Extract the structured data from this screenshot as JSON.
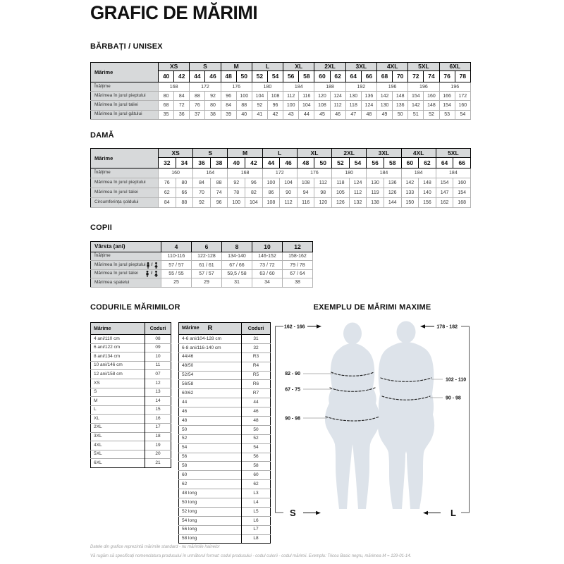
{
  "page": {
    "title": "GRAFIC DE MĂRIMI",
    "footnote1": "Datele din grafice reprezintă mărimile standard - nu mărimile hainelor",
    "footnote2": "Vă rugăm să specificați nomenclatura produsului în următorul format: codul produsului - codul culorii - codul mărimii. Exemplu: Tricou Basic negru, mărimea M = 129-01-14."
  },
  "colors": {
    "header_bg": "#d7d9da",
    "silhouette": "#dde3ea"
  },
  "men": {
    "heading": "BĂRBAȚI / UNISEX",
    "corner_label": "Mărime",
    "sizes": [
      "XS",
      "S",
      "M",
      "L",
      "XL",
      "2XL",
      "3XL",
      "4XL",
      "5XL",
      "6XL"
    ],
    "numbers": [
      "40",
      "42",
      "44",
      "46",
      "48",
      "50",
      "52",
      "54",
      "56",
      "58",
      "60",
      "62",
      "64",
      "66",
      "68",
      "70",
      "72",
      "74",
      "76",
      "78"
    ],
    "rows": [
      {
        "label": "Înălțime",
        "span2": true,
        "values": [
          "168",
          "172",
          "176",
          "180",
          "184",
          "188",
          "192",
          "196",
          "196",
          "196"
        ]
      },
      {
        "label": "Mărimea în jurul pieptului",
        "values": [
          "80",
          "84",
          "88",
          "92",
          "96",
          "100",
          "104",
          "108",
          "112",
          "116",
          "120",
          "124",
          "130",
          "136",
          "142",
          "148",
          "154",
          "160",
          "166",
          "172"
        ]
      },
      {
        "label": "Mărimea în jurul taliei",
        "values": [
          "68",
          "72",
          "76",
          "80",
          "84",
          "88",
          "92",
          "96",
          "100",
          "104",
          "108",
          "112",
          "118",
          "124",
          "130",
          "136",
          "142",
          "148",
          "154",
          "160"
        ]
      },
      {
        "label": "Mărimea în jurul gâtului",
        "values": [
          "35",
          "36",
          "37",
          "38",
          "39",
          "40",
          "41",
          "42",
          "43",
          "44",
          "45",
          "46",
          "47",
          "48",
          "49",
          "50",
          "51",
          "52",
          "53",
          "54"
        ]
      }
    ]
  },
  "women": {
    "heading": "DAMĂ",
    "corner_label": "Mărime",
    "sizes": [
      "XS",
      "S",
      "M",
      "L",
      "XL",
      "2XL",
      "3XL",
      "4XL",
      "5XL"
    ],
    "numbers": [
      "32",
      "34",
      "36",
      "38",
      "40",
      "42",
      "44",
      "46",
      "48",
      "50",
      "52",
      "54",
      "56",
      "58",
      "60",
      "62",
      "64",
      "66"
    ],
    "rows": [
      {
        "label": "Înălțime",
        "span2": true,
        "values": [
          "160",
          "164",
          "168",
          "172",
          "176",
          "180",
          "184",
          "184",
          "184"
        ]
      },
      {
        "label": "Mărimea în jurul pieptului",
        "values": [
          "76",
          "80",
          "84",
          "88",
          "92",
          "96",
          "100",
          "104",
          "108",
          "112",
          "118",
          "124",
          "130",
          "136",
          "142",
          "148",
          "154",
          "160"
        ]
      },
      {
        "label": "Mărimea în jurul taliei",
        "values": [
          "62",
          "66",
          "70",
          "74",
          "78",
          "82",
          "86",
          "90",
          "94",
          "98",
          "105",
          "112",
          "119",
          "126",
          "133",
          "140",
          "147",
          "154"
        ]
      },
      {
        "label": "Circumferința șoldului",
        "values": [
          "84",
          "88",
          "92",
          "96",
          "100",
          "104",
          "108",
          "112",
          "116",
          "120",
          "126",
          "132",
          "138",
          "144",
          "150",
          "156",
          "162",
          "168"
        ]
      }
    ]
  },
  "children": {
    "heading": "COPII",
    "corner_label": "Vârsta (ani)",
    "icon_separator": "/",
    "ages": [
      "4",
      "6",
      "8",
      "10",
      "12"
    ],
    "rows": [
      {
        "label": "Înălțime",
        "values": [
          "110-116",
          "122-128",
          "134-140",
          "146-152",
          "158-162"
        ]
      },
      {
        "label": "Mărimea în jurul pieptului",
        "icons": true,
        "values": [
          "57 / 57",
          "61 / 61",
          "67 / 66",
          "73 / 72",
          "79 / 78"
        ]
      },
      {
        "label": "Mărimea în jurul taliei",
        "icons": true,
        "values": [
          "55 / 55",
          "57 / 57",
          "59,5 / 58",
          "63 / 60",
          "67 / 64"
        ]
      },
      {
        "label": "Mărimea spatelui",
        "values": [
          "25",
          "29",
          "31",
          "34",
          "38"
        ]
      }
    ]
  },
  "codes": {
    "heading": "CODURILE MĂRIMILOR",
    "table1": {
      "col1": "Mărime",
      "col2": "Coduri",
      "rows": [
        [
          "4 ani/110 cm",
          "08"
        ],
        [
          "6 ani/122 cm",
          "09"
        ],
        [
          "8 ani/134 cm",
          "10"
        ],
        [
          "10 ani/146 cm",
          "11"
        ],
        [
          "12 ani/158 cm",
          "07"
        ],
        [
          "XS",
          "12"
        ],
        [
          "S",
          "13"
        ],
        [
          "M",
          "14"
        ],
        [
          "L",
          "15"
        ],
        [
          "XL",
          "16"
        ],
        [
          "2XL",
          "17"
        ],
        [
          "3XL",
          "18"
        ],
        [
          "4XL",
          "19"
        ],
        [
          "5XL",
          "20"
        ],
        [
          "6XL",
          "21"
        ]
      ]
    },
    "table2": {
      "col1": "Mărime",
      "logo": "R",
      "col2": "Coduri",
      "rows": [
        [
          "4-6 ani/104-128 cm",
          "31"
        ],
        [
          "6-8 ani/116-140 cm",
          "32"
        ],
        [
          "44/46",
          "R3"
        ],
        [
          "48/50",
          "R4"
        ],
        [
          "52/54",
          "R5"
        ],
        [
          "56/58",
          "R6"
        ],
        [
          "60/62",
          "R7"
        ],
        [
          "44",
          "44"
        ],
        [
          "46",
          "46"
        ],
        [
          "48",
          "48"
        ],
        [
          "50",
          "50"
        ],
        [
          "52",
          "52"
        ],
        [
          "54",
          "54"
        ],
        [
          "56",
          "56"
        ],
        [
          "58",
          "58"
        ],
        [
          "60",
          "60"
        ],
        [
          "62",
          "62"
        ],
        [
          "48 long",
          "L3"
        ],
        [
          "50 long",
          "L4"
        ],
        [
          "52 long",
          "L5"
        ],
        [
          "54 long",
          "L6"
        ],
        [
          "56 long",
          "L7"
        ],
        [
          "58 long",
          "L8"
        ]
      ]
    }
  },
  "figure": {
    "heading": "EXEMPLU DE MĂRIMI MAXIME",
    "female": {
      "height": "162 - 166",
      "chest": "82 - 90",
      "waist": "67 - 75",
      "hip": "90 - 98",
      "size": "S"
    },
    "male": {
      "height": "178 - 182",
      "chest": "102 - 110",
      "waist": "90 - 98",
      "size": "L"
    }
  }
}
